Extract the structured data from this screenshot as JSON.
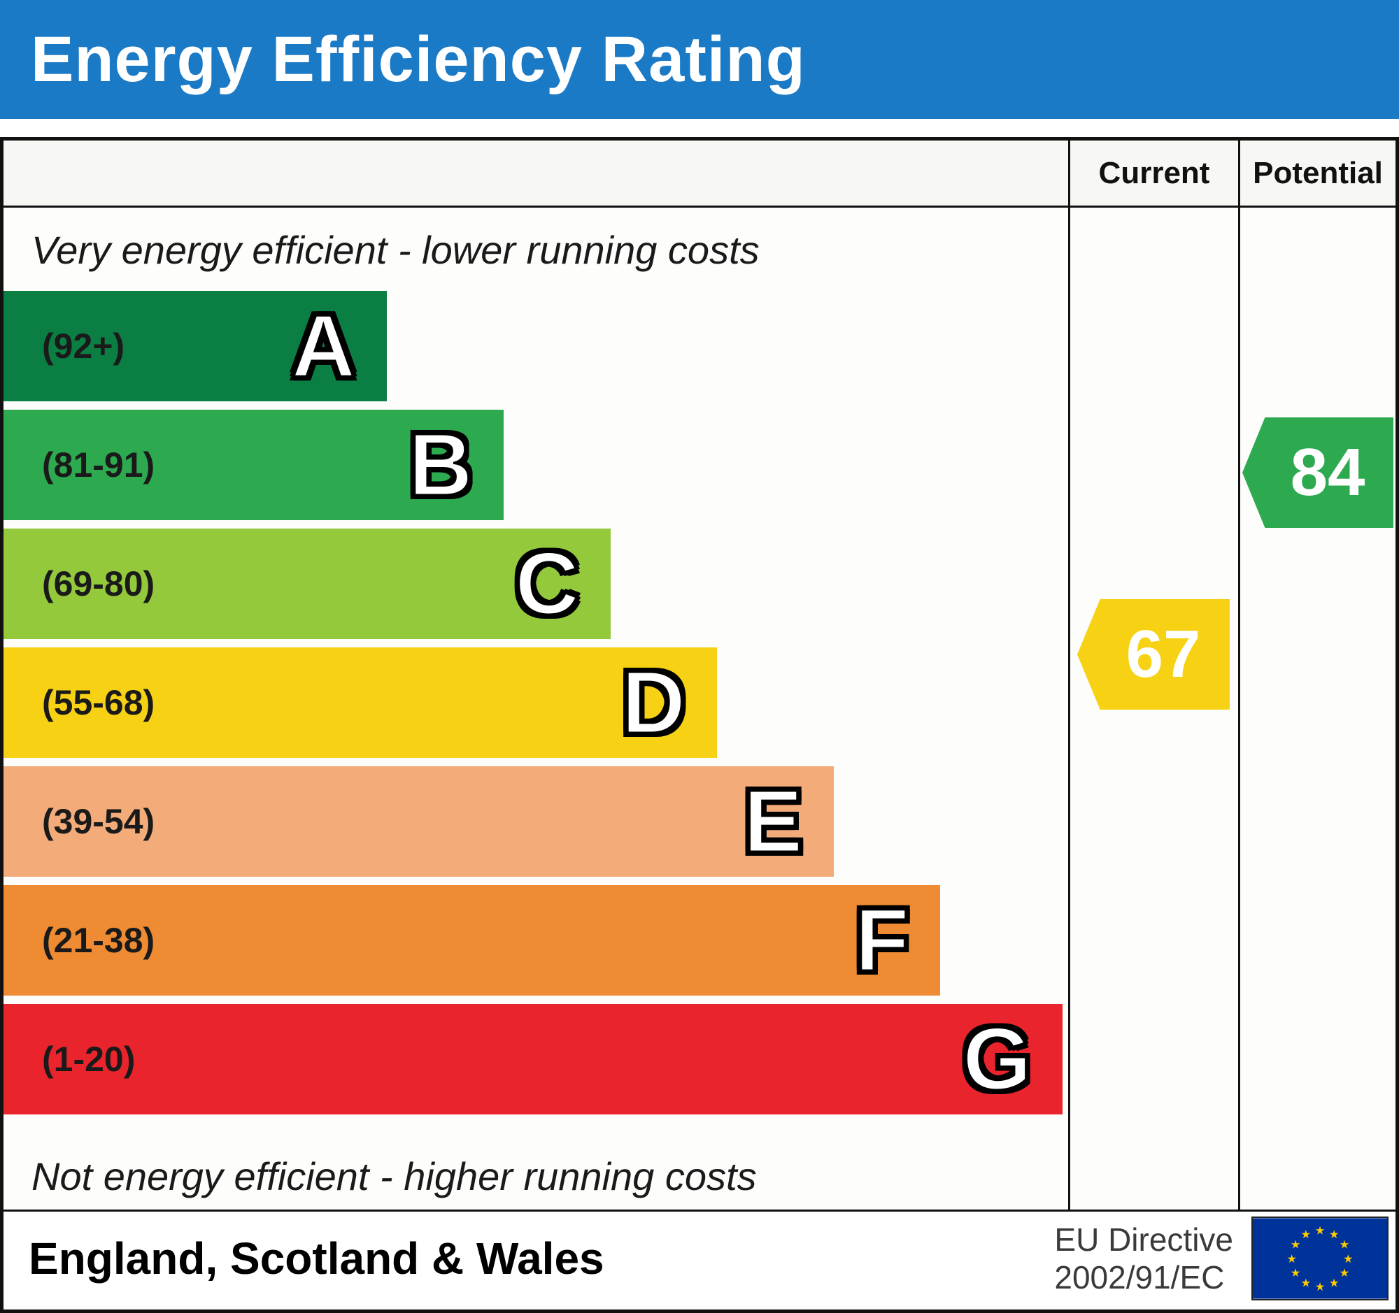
{
  "colors": {
    "header_bg": "#1b7ac6",
    "border": "#111111",
    "flag_bg": "#003399",
    "flag_star": "#ffcc00"
  },
  "header": {
    "title": "Energy Efficiency Rating"
  },
  "table": {
    "current_label": "Current",
    "potential_label": "Potential",
    "top_note": "Very energy efficient - lower running costs",
    "bottom_note": "Not energy efficient - higher running costs"
  },
  "bands": [
    {
      "letter": "A",
      "range": "(92+)",
      "color": "#0b7e43",
      "width_pct": 36
    },
    {
      "letter": "B",
      "range": "(81-91)",
      "color": "#2daa50",
      "width_pct": 47
    },
    {
      "letter": "C",
      "range": "(69-80)",
      "color": "#95c93c",
      "width_pct": 57
    },
    {
      "letter": "D",
      "range": "(55-68)",
      "color": "#f7d113",
      "width_pct": 67
    },
    {
      "letter": "E",
      "range": "(39-54)",
      "color": "#f3ab79",
      "width_pct": 78
    },
    {
      "letter": "F",
      "range": "(21-38)",
      "color": "#ee8b33",
      "width_pct": 88
    },
    {
      "letter": "G",
      "range": "(1-20)",
      "color": "#e9242d",
      "width_pct": 99.5
    }
  ],
  "pointers": {
    "current": {
      "value": "67",
      "color": "#f7d113",
      "band": "D"
    },
    "potential": {
      "value": "84",
      "color": "#2daa50",
      "band": "B"
    }
  },
  "footer": {
    "region": "England, Scotland & Wales",
    "directive_line1": "EU Directive",
    "directive_line2": "2002/91/EC"
  },
  "chart_data": {
    "type": "bar",
    "orientation": "horizontal",
    "title": "Energy Efficiency Rating",
    "categories": [
      "A",
      "B",
      "C",
      "D",
      "E",
      "F",
      "G"
    ],
    "ranges": [
      "92+",
      "81-91",
      "69-80",
      "55-68",
      "39-54",
      "21-38",
      "1-20"
    ],
    "bar_lengths_relative_pct": [
      36,
      47,
      57,
      67,
      78,
      88,
      99.5
    ],
    "colors": [
      "#0b7e43",
      "#2daa50",
      "#95c93c",
      "#f7d113",
      "#f3ab79",
      "#ee8b33",
      "#e9242d"
    ],
    "annotations": [
      {
        "label": "Current",
        "value": 67,
        "band": "D",
        "color": "#f7d113"
      },
      {
        "label": "Potential",
        "value": 84,
        "band": "B",
        "color": "#2daa50"
      }
    ],
    "notes": [
      "Very energy efficient - lower running costs",
      "Not energy efficient - higher running costs"
    ],
    "legend_position": "none",
    "grid": false,
    "footer_region": "England, Scotland & Wales",
    "footer_directive": "EU Directive 2002/91/EC"
  }
}
